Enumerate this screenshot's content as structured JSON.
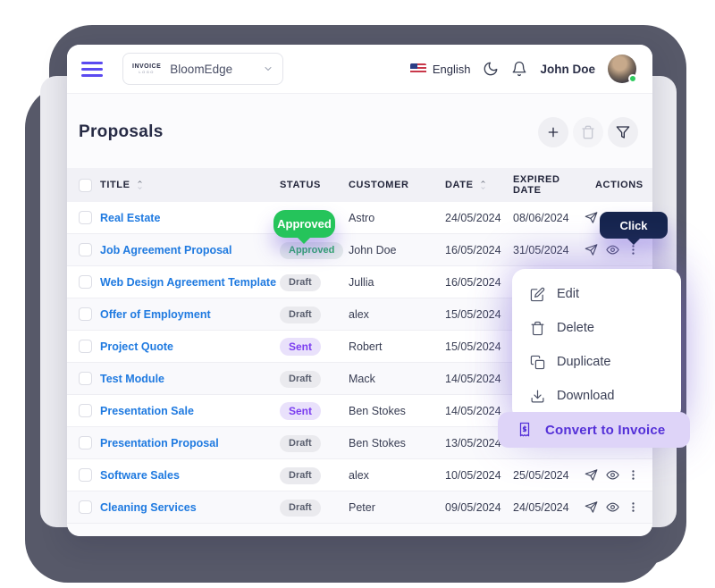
{
  "topbar": {
    "logo_top": "INVOICE",
    "logo_bottom": "LOGO",
    "workspace": "BloomEdge",
    "language": "English",
    "user": "John Doe"
  },
  "page": {
    "title": "Proposals"
  },
  "table": {
    "headers": [
      "TITLE",
      "STATUS",
      "CUSTOMER",
      "DATE",
      "EXPIRED DATE",
      "ACTIONS"
    ],
    "rows": [
      {
        "title": "Real Estate",
        "status": "",
        "customer": "Astro",
        "date": "24/05/2024",
        "expired": "08/06/2024",
        "actions": true
      },
      {
        "title": "Job Agreement Proposal",
        "status": "Approved",
        "customer": "John Doe",
        "date": "16/05/2024",
        "expired": "31/05/2024",
        "actions": true
      },
      {
        "title": "Web Design Agreement Template",
        "status": "Draft",
        "customer": "Jullia",
        "date": "16/05/2024",
        "expired": "",
        "actions": false
      },
      {
        "title": "Offer of Employment",
        "status": "Draft",
        "customer": "alex",
        "date": "15/05/2024",
        "expired": "",
        "actions": false
      },
      {
        "title": "Project Quote",
        "status": "Sent",
        "customer": "Robert",
        "date": "15/05/2024",
        "expired": "",
        "actions": false
      },
      {
        "title": "Test Module",
        "status": "Draft",
        "customer": "Mack",
        "date": "14/05/2024",
        "expired": "",
        "actions": false
      },
      {
        "title": "Presentation Sale",
        "status": "Sent",
        "customer": "Ben Stokes",
        "date": "14/05/2024",
        "expired": "",
        "actions": false
      },
      {
        "title": "Presentation Proposal",
        "status": "Draft",
        "customer": "Ben Stokes",
        "date": "13/05/2024",
        "expired": "",
        "actions": false
      },
      {
        "title": "Software Sales",
        "status": "Draft",
        "customer": "alex",
        "date": "10/05/2024",
        "expired": "25/05/2024",
        "actions": true
      },
      {
        "title": "Cleaning Services",
        "status": "Draft",
        "customer": "Peter",
        "date": "09/05/2024",
        "expired": "24/05/2024",
        "actions": true
      }
    ]
  },
  "menu": {
    "items": [
      {
        "icon": "edit",
        "label": "Edit"
      },
      {
        "icon": "trash",
        "label": "Delete"
      },
      {
        "icon": "copy",
        "label": "Duplicate"
      },
      {
        "icon": "download",
        "label": "Download"
      }
    ],
    "highlighted": {
      "icon": "invoice",
      "label": "Convert to Invoice"
    }
  },
  "tooltips": {
    "status": "Approved",
    "action": "Click"
  },
  "colors": {
    "accent": "#5b4af0",
    "green": "#25c45b",
    "navy": "#16254e",
    "link": "#1f7ae0",
    "purple_text": "#5430d8",
    "pill_bg": "#ded4f8",
    "backdrop": "#575969"
  }
}
